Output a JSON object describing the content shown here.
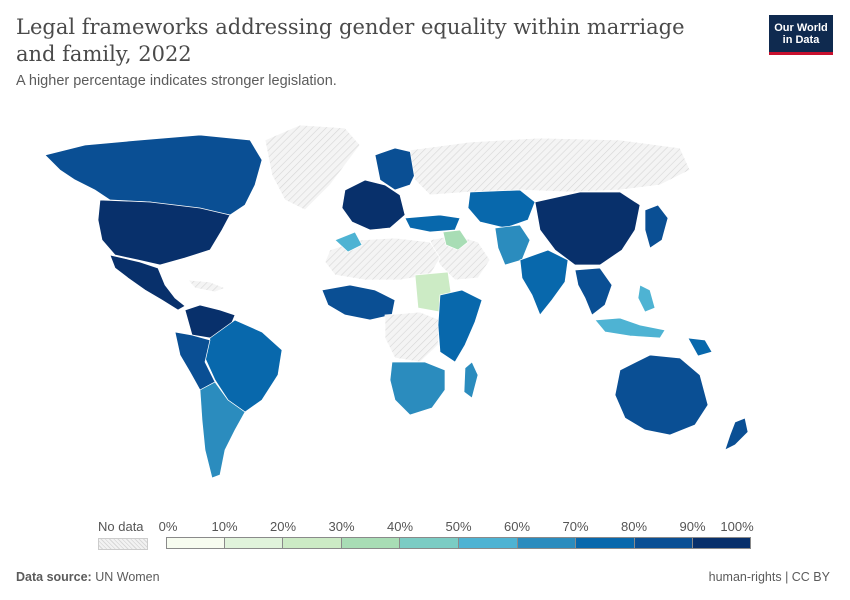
{
  "header": {
    "title": "Legal frameworks addressing gender equality within marriage and family, 2022",
    "subtitle": "A higher percentage indicates stronger legislation.",
    "logo_line1": "Our World",
    "logo_line2": "in Data"
  },
  "legend": {
    "no_data_label": "No data",
    "ticks": [
      "0%",
      "10%",
      "20%",
      "30%",
      "40%",
      "50%",
      "60%",
      "70%",
      "80%",
      "90%",
      "100%"
    ],
    "bin_colors": [
      "#f7fcf0",
      "#e0f3db",
      "#ccebc5",
      "#a8ddb5",
      "#7bccc4",
      "#4eb3d3",
      "#2b8cbe",
      "#0868ac",
      "#0a4f94",
      "#08306b"
    ]
  },
  "footer": {
    "source_label": "Data source:",
    "source_value": "UN Women",
    "license": "human-rights | CC BY"
  },
  "colors": {
    "no_data_fill": "#eeeeee",
    "country_stroke": "#ffffff"
  }
}
